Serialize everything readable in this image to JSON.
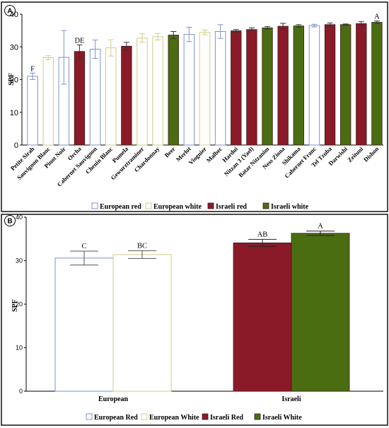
{
  "chart_data": [
    {
      "type": "bar",
      "panel": "A",
      "ylabel": "SPF",
      "ylim": [
        0,
        40
      ],
      "yticks": [
        0,
        10,
        20,
        30,
        40
      ],
      "categories": [
        "Petite Sirah",
        "Sauvignon Blanc",
        "Pinot Noir",
        "Orcha",
        "Cabernet Sauvignon",
        "Chenin Blanc",
        "Pumela",
        "Gewurztraminer",
        "Chardonnay",
        "Beer",
        "Merlot",
        "Viognier",
        "Malbec",
        "Hardui",
        "Nitzan 3 (Yael)",
        "Batar Nitzanim",
        "Ness Ziona",
        "Shikama",
        "Cabernet Franc",
        "Tel Tzuba",
        "Darwishi",
        "Zeituni",
        "Dishon"
      ],
      "values": [
        21.0,
        26.7,
        26.8,
        28.6,
        29.3,
        29.7,
        30.2,
        32.7,
        33.1,
        33.6,
        33.8,
        34.4,
        34.7,
        34.9,
        35.3,
        35.8,
        36.3,
        36.4,
        36.5,
        36.8,
        36.8,
        37.1,
        37.5
      ],
      "errors": [
        1.0,
        0.6,
        8.2,
        2.0,
        2.8,
        2.5,
        1.2,
        1.3,
        1.0,
        1.1,
        2.2,
        0.7,
        2.1,
        0.4,
        0.5,
        0.4,
        0.9,
        0.4,
        0.4,
        0.5,
        0.2,
        0.6,
        0.4
      ],
      "groups": [
        "eu_red",
        "eu_white",
        "eu_red",
        "il_red",
        "eu_red",
        "eu_white",
        "il_red",
        "eu_white",
        "eu_white",
        "il_white",
        "eu_red",
        "eu_white",
        "eu_red",
        "il_red",
        "il_red",
        "il_white",
        "il_red",
        "il_white",
        "eu_red",
        "il_red",
        "il_white",
        "il_red",
        "il_white"
      ],
      "annotations": [
        {
          "index": 0,
          "text": "F"
        },
        {
          "index": 3,
          "text": "DE"
        },
        {
          "index": 22,
          "text": "A"
        }
      ],
      "legend": [
        {
          "key": "eu_red",
          "label": "European red"
        },
        {
          "key": "eu_white",
          "label": "European white"
        },
        {
          "key": "il_red",
          "label": "Israeli red"
        },
        {
          "key": "il_white",
          "label": "Israeli white"
        }
      ],
      "legend_position": "bottom"
    },
    {
      "type": "bar",
      "panel": "B",
      "ylabel": "SPF",
      "ylim": [
        0,
        40
      ],
      "yticks": [
        0,
        10,
        20,
        30,
        40
      ],
      "categories": [
        "European",
        "Israeli"
      ],
      "series": [
        {
          "name": "European Red",
          "key": "eu_red",
          "values": [
            30.6,
            null
          ],
          "errors": [
            1.6,
            null
          ]
        },
        {
          "name": "European White",
          "key": "eu_white",
          "values": [
            31.4,
            null
          ],
          "errors": [
            0.9,
            null
          ]
        },
        {
          "name": "Israeli Red",
          "key": "il_red",
          "values": [
            null,
            34.1
          ],
          "errors": [
            null,
            0.8
          ]
        },
        {
          "name": "Israeli White",
          "key": "il_white",
          "values": [
            null,
            36.3
          ],
          "errors": [
            null,
            0.5
          ]
        }
      ],
      "annotations": [
        {
          "series": 0,
          "category": 0,
          "text": "C"
        },
        {
          "series": 1,
          "category": 0,
          "text": "BC"
        },
        {
          "series": 2,
          "category": 1,
          "text": "AB"
        },
        {
          "series": 3,
          "category": 1,
          "text": "A"
        }
      ],
      "legend_position": "bottom"
    }
  ],
  "colors": {
    "eu_red": "#7b93cf",
    "eu_white": "#d2cc8a",
    "il_red": "#8b1a28",
    "il_white": "#4a6d12"
  },
  "panel_labels": [
    "A",
    "B"
  ]
}
